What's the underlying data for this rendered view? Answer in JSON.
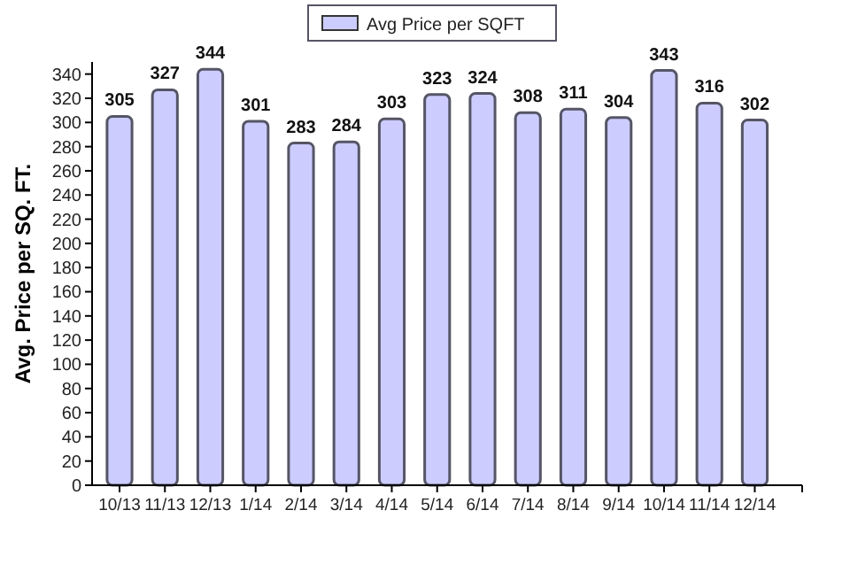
{
  "chart_data": {
    "type": "bar",
    "ylabel": "Avg. Price per SQ. FT.",
    "categories": [
      "10/13",
      "11/13",
      "12/13",
      "1/14",
      "2/14",
      "3/14",
      "4/14",
      "5/14",
      "6/14",
      "7/14",
      "8/14",
      "9/14",
      "10/14",
      "11/14",
      "12/14"
    ],
    "series": [
      {
        "name": "Avg Price per SQFT",
        "color": "#ccccff",
        "values": [
          305,
          327,
          344,
          301,
          283,
          284,
          303,
          323,
          324,
          308,
          311,
          304,
          343,
          316,
          302
        ]
      }
    ],
    "ylim": [
      0,
      350
    ],
    "yticks": [
      0,
      20,
      40,
      60,
      80,
      100,
      120,
      140,
      160,
      180,
      200,
      220,
      240,
      260,
      280,
      300,
      320,
      340
    ],
    "data_labels": true,
    "legend": "top",
    "grid": false
  }
}
